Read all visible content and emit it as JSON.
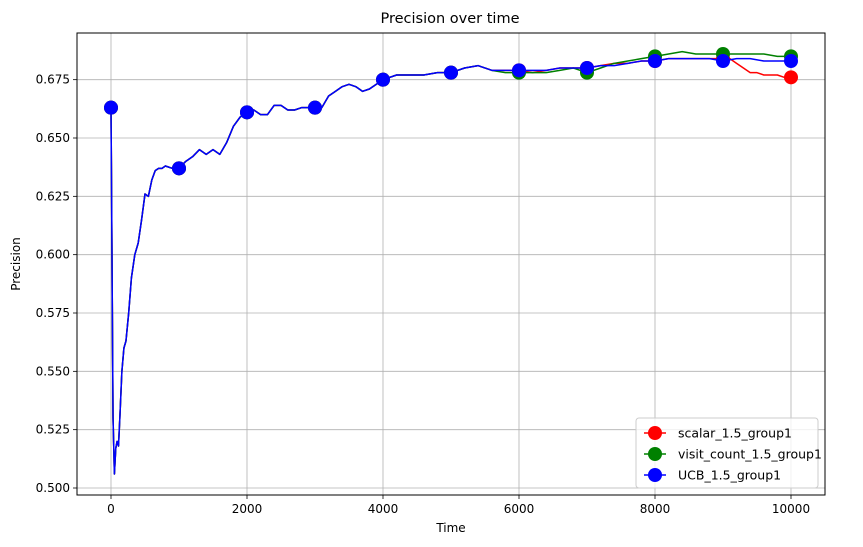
{
  "chart_data": {
    "type": "line",
    "title": "Precision over time",
    "xlabel": "Time",
    "ylabel": "Precision",
    "xlim": [
      -500,
      10500
    ],
    "ylim": [
      0.497,
      0.695
    ],
    "xticks": [
      0,
      2000,
      4000,
      6000,
      8000,
      10000
    ],
    "xtick_labels": [
      "0",
      "2000",
      "4000",
      "6000",
      "8000",
      "10000"
    ],
    "yticks": [
      0.5,
      0.525,
      0.55,
      0.575,
      0.6,
      0.625,
      0.65,
      0.675
    ],
    "ytick_labels": [
      "0.500",
      "0.525",
      "0.550",
      "0.575",
      "0.600",
      "0.625",
      "0.650",
      "0.675"
    ],
    "grid": true,
    "legend_position": "lower-right",
    "series": [
      {
        "name": "scalar_1.5_group1",
        "color": "#ff0000",
        "x": [
          0,
          10,
          30,
          50,
          70,
          90,
          110,
          130,
          160,
          190,
          220,
          260,
          300,
          350,
          400,
          450,
          500,
          550,
          600,
          650,
          700,
          750,
          800,
          900,
          1000,
          1100,
          1200,
          1300,
          1400,
          1500,
          1600,
          1700,
          1800,
          1900,
          2000,
          2100,
          2200,
          2300,
          2400,
          2500,
          2600,
          2700,
          2800,
          2900,
          3000,
          3100,
          3200,
          3300,
          3400,
          3500,
          3600,
          3700,
          3800,
          3900,
          4000,
          4200,
          4400,
          4600,
          4800,
          5000,
          5200,
          5400,
          5600,
          5800,
          6000,
          6200,
          6400,
          6600,
          6800,
          7000,
          7200,
          7400,
          7600,
          7800,
          8000,
          8200,
          8400,
          8600,
          8800,
          9000,
          9100,
          9200,
          9300,
          9400,
          9500,
          9600,
          9700,
          9800,
          9900,
          10000
        ],
        "y": [
          0.663,
          0.62,
          0.53,
          0.506,
          0.517,
          0.52,
          0.518,
          0.53,
          0.55,
          0.56,
          0.563,
          0.575,
          0.59,
          0.6,
          0.605,
          0.615,
          0.626,
          0.625,
          0.632,
          0.636,
          0.637,
          0.637,
          0.638,
          0.637,
          0.637,
          0.64,
          0.642,
          0.645,
          0.643,
          0.645,
          0.643,
          0.648,
          0.655,
          0.659,
          0.661,
          0.662,
          0.66,
          0.66,
          0.664,
          0.664,
          0.662,
          0.662,
          0.663,
          0.663,
          0.663,
          0.663,
          0.668,
          0.67,
          0.672,
          0.673,
          0.672,
          0.67,
          0.671,
          0.673,
          0.675,
          0.677,
          0.677,
          0.677,
          0.678,
          0.678,
          0.68,
          0.681,
          0.679,
          0.679,
          0.679,
          0.678,
          0.679,
          0.68,
          0.68,
          0.68,
          0.681,
          0.682,
          0.682,
          0.683,
          0.683,
          0.684,
          0.684,
          0.684,
          0.684,
          0.684,
          0.684,
          0.682,
          0.68,
          0.678,
          0.678,
          0.677,
          0.677,
          0.677,
          0.676,
          0.676
        ],
        "markers_x": [
          0,
          1000,
          2000,
          3000,
          4000,
          5000,
          6000,
          7000,
          8000,
          9000,
          10000
        ],
        "markers_y": [
          0.663,
          0.637,
          0.661,
          0.663,
          0.675,
          0.678,
          0.679,
          0.68,
          0.683,
          0.684,
          0.676
        ]
      },
      {
        "name": "visit_count_1.5_group1",
        "color": "#008000",
        "x": [
          0,
          10,
          30,
          50,
          70,
          90,
          110,
          130,
          160,
          190,
          220,
          260,
          300,
          350,
          400,
          450,
          500,
          550,
          600,
          650,
          700,
          750,
          800,
          900,
          1000,
          1100,
          1200,
          1300,
          1400,
          1500,
          1600,
          1700,
          1800,
          1900,
          2000,
          2100,
          2200,
          2300,
          2400,
          2500,
          2600,
          2700,
          2800,
          2900,
          3000,
          3100,
          3200,
          3300,
          3400,
          3500,
          3600,
          3700,
          3800,
          3900,
          4000,
          4200,
          4400,
          4600,
          4800,
          5000,
          5200,
          5400,
          5600,
          5800,
          6000,
          6200,
          6400,
          6600,
          6800,
          7000,
          7200,
          7400,
          7600,
          7800,
          8000,
          8200,
          8400,
          8600,
          8800,
          9000,
          9200,
          9400,
          9600,
          9800,
          10000
        ],
        "y": [
          0.663,
          0.62,
          0.53,
          0.506,
          0.517,
          0.52,
          0.518,
          0.53,
          0.55,
          0.56,
          0.563,
          0.575,
          0.59,
          0.6,
          0.605,
          0.615,
          0.626,
          0.625,
          0.632,
          0.636,
          0.637,
          0.637,
          0.638,
          0.637,
          0.637,
          0.64,
          0.642,
          0.645,
          0.643,
          0.645,
          0.643,
          0.648,
          0.655,
          0.659,
          0.661,
          0.662,
          0.66,
          0.66,
          0.664,
          0.664,
          0.662,
          0.662,
          0.663,
          0.663,
          0.663,
          0.663,
          0.668,
          0.67,
          0.672,
          0.673,
          0.672,
          0.67,
          0.671,
          0.673,
          0.675,
          0.677,
          0.677,
          0.677,
          0.678,
          0.678,
          0.68,
          0.681,
          0.679,
          0.678,
          0.678,
          0.678,
          0.678,
          0.679,
          0.68,
          0.678,
          0.68,
          0.682,
          0.683,
          0.684,
          0.685,
          0.686,
          0.687,
          0.686,
          0.686,
          0.686,
          0.686,
          0.686,
          0.686,
          0.685,
          0.685
        ],
        "markers_x": [
          0,
          1000,
          2000,
          3000,
          4000,
          5000,
          6000,
          7000,
          8000,
          9000,
          10000
        ],
        "markers_y": [
          0.663,
          0.637,
          0.661,
          0.663,
          0.675,
          0.678,
          0.678,
          0.678,
          0.685,
          0.686,
          0.685
        ]
      },
      {
        "name": "UCB_1.5_group1",
        "color": "#0000ff",
        "x": [
          0,
          10,
          30,
          50,
          70,
          90,
          110,
          130,
          160,
          190,
          220,
          260,
          300,
          350,
          400,
          450,
          500,
          550,
          600,
          650,
          700,
          750,
          800,
          900,
          1000,
          1100,
          1200,
          1300,
          1400,
          1500,
          1600,
          1700,
          1800,
          1900,
          2000,
          2100,
          2200,
          2300,
          2400,
          2500,
          2600,
          2700,
          2800,
          2900,
          3000,
          3100,
          3200,
          3300,
          3400,
          3500,
          3600,
          3700,
          3800,
          3900,
          4000,
          4200,
          4400,
          4600,
          4800,
          5000,
          5200,
          5400,
          5600,
          5800,
          6000,
          6200,
          6400,
          6600,
          6800,
          7000,
          7200,
          7400,
          7600,
          7800,
          8000,
          8200,
          8400,
          8600,
          8800,
          9000,
          9200,
          9400,
          9600,
          9800,
          10000
        ],
        "y": [
          0.663,
          0.62,
          0.53,
          0.506,
          0.517,
          0.52,
          0.518,
          0.53,
          0.55,
          0.56,
          0.563,
          0.575,
          0.59,
          0.6,
          0.605,
          0.615,
          0.626,
          0.625,
          0.632,
          0.636,
          0.637,
          0.637,
          0.638,
          0.637,
          0.637,
          0.64,
          0.642,
          0.645,
          0.643,
          0.645,
          0.643,
          0.648,
          0.655,
          0.659,
          0.661,
          0.662,
          0.66,
          0.66,
          0.664,
          0.664,
          0.662,
          0.662,
          0.663,
          0.663,
          0.663,
          0.663,
          0.668,
          0.67,
          0.672,
          0.673,
          0.672,
          0.67,
          0.671,
          0.673,
          0.675,
          0.677,
          0.677,
          0.677,
          0.678,
          0.678,
          0.68,
          0.681,
          0.679,
          0.679,
          0.679,
          0.679,
          0.679,
          0.68,
          0.68,
          0.68,
          0.681,
          0.681,
          0.682,
          0.683,
          0.683,
          0.684,
          0.684,
          0.684,
          0.684,
          0.683,
          0.684,
          0.684,
          0.683,
          0.683,
          0.683
        ],
        "markers_x": [
          0,
          1000,
          2000,
          3000,
          4000,
          5000,
          6000,
          7000,
          8000,
          9000,
          10000
        ],
        "markers_y": [
          0.663,
          0.637,
          0.661,
          0.663,
          0.675,
          0.678,
          0.679,
          0.68,
          0.683,
          0.683,
          0.683
        ]
      }
    ]
  }
}
